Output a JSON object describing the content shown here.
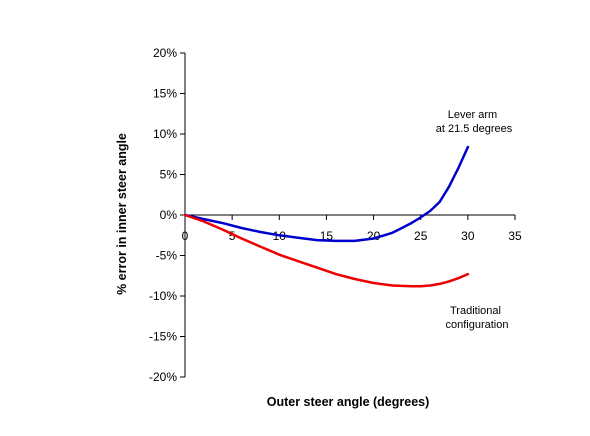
{
  "chart_data": {
    "type": "line",
    "title": "",
    "xlabel": "Outer steer angle (degrees)",
    "ylabel": "% error in inner steer angle",
    "xlim": [
      0,
      35
    ],
    "ylim": [
      -20,
      20
    ],
    "x_ticks": [
      0,
      5,
      10,
      15,
      20,
      25,
      30,
      35
    ],
    "y_ticks": [
      20,
      15,
      10,
      5,
      0,
      -5,
      -10,
      -15,
      -20
    ],
    "x_tick_labels": [
      "0",
      "5",
      "10",
      "15",
      "20",
      "25",
      "30",
      "35"
    ],
    "y_tick_labels": [
      "20%",
      "15%",
      "10%",
      "5%",
      "0%",
      "-5%",
      "-10%",
      "-15%",
      "-20%"
    ],
    "grid": false,
    "legend": "none",
    "series": [
      {
        "color": "#0000cc",
        "x": [
          0,
          2,
          4,
          6,
          8,
          10,
          12,
          14,
          16,
          17,
          18,
          20,
          22,
          23,
          24,
          25,
          26,
          27,
          28,
          29,
          30
        ],
        "y": [
          0,
          -0.5,
          -1.0,
          -1.6,
          -2.1,
          -2.5,
          -2.8,
          -3.1,
          -3.2,
          -3.2,
          -3.2,
          -2.9,
          -2.2,
          -1.6,
          -1.0,
          -0.3,
          0.5,
          1.6,
          3.5,
          5.8,
          8.4
        ]
      },
      {
        "color": "#ee0000",
        "x": [
          0,
          2,
          4,
          6,
          8,
          10,
          12,
          14,
          16,
          18,
          20,
          22,
          24,
          25,
          26,
          27,
          28,
          29,
          30
        ],
        "y": [
          0,
          -0.8,
          -1.8,
          -2.9,
          -3.9,
          -4.9,
          -5.7,
          -6.5,
          -7.3,
          -7.9,
          -8.4,
          -8.7,
          -8.8,
          -8.8,
          -8.7,
          -8.5,
          -8.2,
          -7.8,
          -7.3
        ]
      }
    ],
    "annotations": [
      {
        "lines": [
          "Lever arm",
          "at 21.5 degrees"
        ]
      },
      {
        "lines": [
          "Traditional",
          "configuration"
        ]
      }
    ]
  }
}
